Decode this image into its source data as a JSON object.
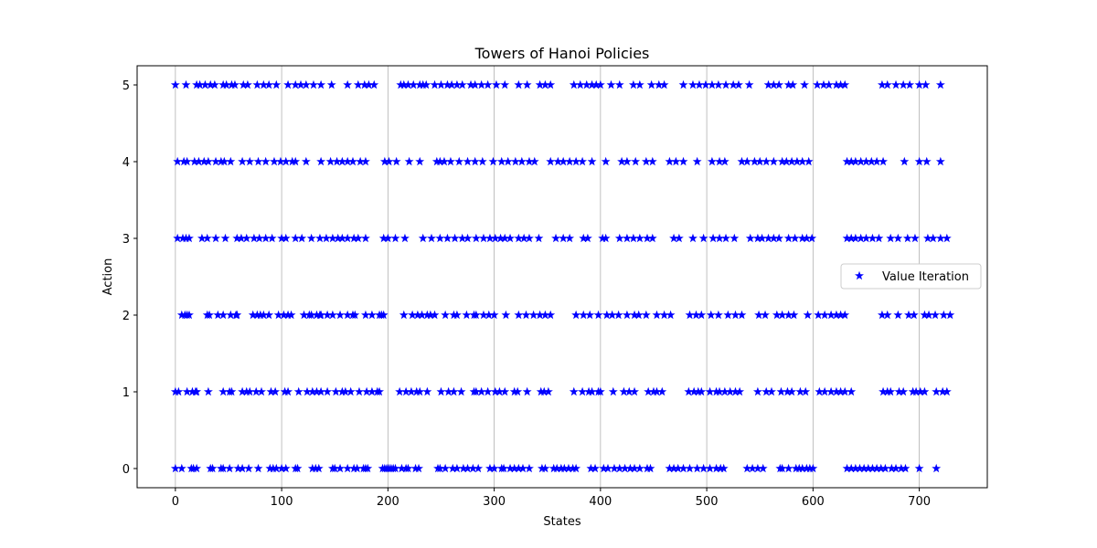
{
  "chart_data": {
    "type": "scatter",
    "title": "Towers of Hanoi Policies",
    "xlabel": "States",
    "ylabel": "Action",
    "xlim": [
      -36,
      764
    ],
    "ylim": [
      -0.25,
      5.25
    ],
    "xticks": [
      0,
      100,
      200,
      300,
      400,
      500,
      600,
      700
    ],
    "yticks": [
      0,
      1,
      2,
      3,
      4,
      5
    ],
    "grid": "x-major",
    "legend_position": "center-right",
    "marker": "star",
    "series": [
      {
        "name": "Value Iteration",
        "color": "#0000ff",
        "points": {
          "0": [
            0,
            6,
            15,
            17,
            20,
            33,
            35,
            43,
            45,
            51,
            59,
            63,
            69,
            78,
            89,
            92,
            95,
            100,
            104,
            113,
            115,
            129,
            132,
            135,
            148,
            150,
            155,
            162,
            168,
            171,
            177,
            179,
            181,
            195,
            197,
            199,
            201,
            203,
            205,
            207,
            213,
            217,
            219,
            226,
            229,
            247,
            249,
            254,
            261,
            265,
            271,
            275,
            280,
            285,
            296,
            300,
            307,
            309,
            315,
            319,
            323,
            327,
            333,
            345,
            348,
            356,
            359,
            363,
            366,
            370,
            374,
            377,
            391,
            395,
            403,
            407,
            413,
            418,
            423,
            428,
            432,
            437,
            444,
            447,
            465,
            469,
            473,
            478,
            484,
            491,
            497,
            503,
            509,
            513,
            516,
            538,
            543,
            548,
            553,
            569,
            571,
            577,
            584,
            587,
            590,
            594,
            597,
            600,
            632,
            636,
            640,
            644,
            648,
            652,
            656,
            660,
            664,
            668,
            674,
            678,
            683,
            687,
            700,
            716
          ],
          "1": [
            0,
            3,
            11,
            16,
            19,
            20,
            31,
            45,
            51,
            53,
            63,
            67,
            70,
            76,
            81,
            90,
            94,
            103,
            106,
            116,
            124,
            129,
            133,
            137,
            143,
            151,
            157,
            160,
            165,
            173,
            180,
            185,
            190,
            192,
            211,
            217,
            222,
            227,
            230,
            237,
            250,
            257,
            262,
            269,
            281,
            283,
            288,
            294,
            301,
            305,
            310,
            319,
            322,
            331,
            344,
            347,
            351,
            375,
            383,
            389,
            392,
            398,
            400,
            412,
            422,
            427,
            432,
            445,
            450,
            453,
            458,
            483,
            488,
            492,
            495,
            503,
            509,
            512,
            517,
            522,
            527,
            531,
            548,
            556,
            561,
            570,
            576,
            580,
            588,
            593,
            606,
            611,
            617,
            622,
            626,
            630,
            636,
            666,
            670,
            673,
            681,
            685,
            694,
            697,
            701,
            705,
            716,
            722,
            726
          ],
          "2": [
            6,
            9,
            11,
            13,
            30,
            32,
            40,
            45,
            52,
            57,
            58,
            73,
            77,
            80,
            83,
            88,
            97,
            102,
            106,
            109,
            121,
            126,
            128,
            133,
            136,
            137,
            143,
            148,
            155,
            162,
            167,
            169,
            179,
            185,
            192,
            194,
            196,
            215,
            223,
            228,
            232,
            237,
            240,
            244,
            254,
            262,
            265,
            274,
            281,
            283,
            290,
            295,
            300,
            311,
            323,
            330,
            337,
            343,
            348,
            353,
            377,
            384,
            390,
            398,
            406,
            411,
            417,
            425,
            432,
            436,
            443,
            453,
            460,
            466,
            484,
            490,
            495,
            504,
            511,
            520,
            527,
            533,
            549,
            555,
            566,
            571,
            577,
            582,
            595,
            605,
            611,
            617,
            622,
            626,
            630,
            665,
            670,
            680,
            690,
            695,
            705,
            709,
            715,
            723,
            729
          ],
          "3": [
            2,
            7,
            10,
            13,
            25,
            30,
            38,
            47,
            58,
            62,
            67,
            74,
            79,
            85,
            91,
            100,
            104,
            113,
            119,
            128,
            136,
            142,
            148,
            153,
            157,
            162,
            168,
            172,
            179,
            196,
            200,
            207,
            216,
            233,
            241,
            249,
            256,
            263,
            270,
            275,
            283,
            290,
            296,
            301,
            306,
            310,
            315,
            323,
            328,
            333,
            342,
            358,
            365,
            371,
            384,
            388,
            402,
            405,
            418,
            425,
            431,
            437,
            444,
            449,
            469,
            474,
            487,
            497,
            506,
            512,
            518,
            526,
            541,
            548,
            552,
            558,
            563,
            568,
            577,
            583,
            590,
            594,
            599,
            632,
            636,
            640,
            645,
            650,
            656,
            662,
            673,
            680,
            689,
            696,
            708,
            713,
            720,
            726
          ],
          "4": [
            2,
            8,
            11,
            18,
            22,
            27,
            31,
            38,
            43,
            46,
            52,
            63,
            70,
            78,
            85,
            93,
            99,
            104,
            110,
            113,
            123,
            137,
            146,
            152,
            157,
            162,
            167,
            174,
            179,
            197,
            201,
            208,
            220,
            230,
            246,
            249,
            253,
            259,
            267,
            275,
            282,
            289,
            299,
            307,
            313,
            320,
            326,
            333,
            338,
            353,
            360,
            365,
            371,
            377,
            383,
            392,
            405,
            420,
            425,
            433,
            443,
            449,
            465,
            471,
            478,
            491,
            505,
            512,
            517,
            533,
            538,
            545,
            550,
            556,
            563,
            571,
            575,
            580,
            585,
            590,
            596,
            632,
            636,
            640,
            645,
            650,
            655,
            660,
            666,
            686,
            700,
            707,
            720
          ],
          "5": [
            0,
            10,
            20,
            23,
            28,
            33,
            37,
            45,
            48,
            53,
            56,
            64,
            68,
            77,
            83,
            88,
            95,
            106,
            113,
            118,
            123,
            130,
            137,
            147,
            162,
            172,
            178,
            182,
            187,
            212,
            215,
            219,
            224,
            230,
            233,
            236,
            244,
            250,
            256,
            260,
            265,
            270,
            278,
            282,
            288,
            294,
            302,
            310,
            323,
            331,
            343,
            348,
            353,
            375,
            381,
            387,
            392,
            396,
            400,
            410,
            418,
            431,
            437,
            448,
            455,
            460,
            478,
            487,
            493,
            499,
            505,
            511,
            518,
            525,
            530,
            540,
            558,
            563,
            568,
            577,
            581,
            592,
            604,
            610,
            615,
            622,
            626,
            630,
            665,
            670,
            678,
            685,
            691,
            700,
            706,
            720
          ]
        }
      }
    ]
  }
}
